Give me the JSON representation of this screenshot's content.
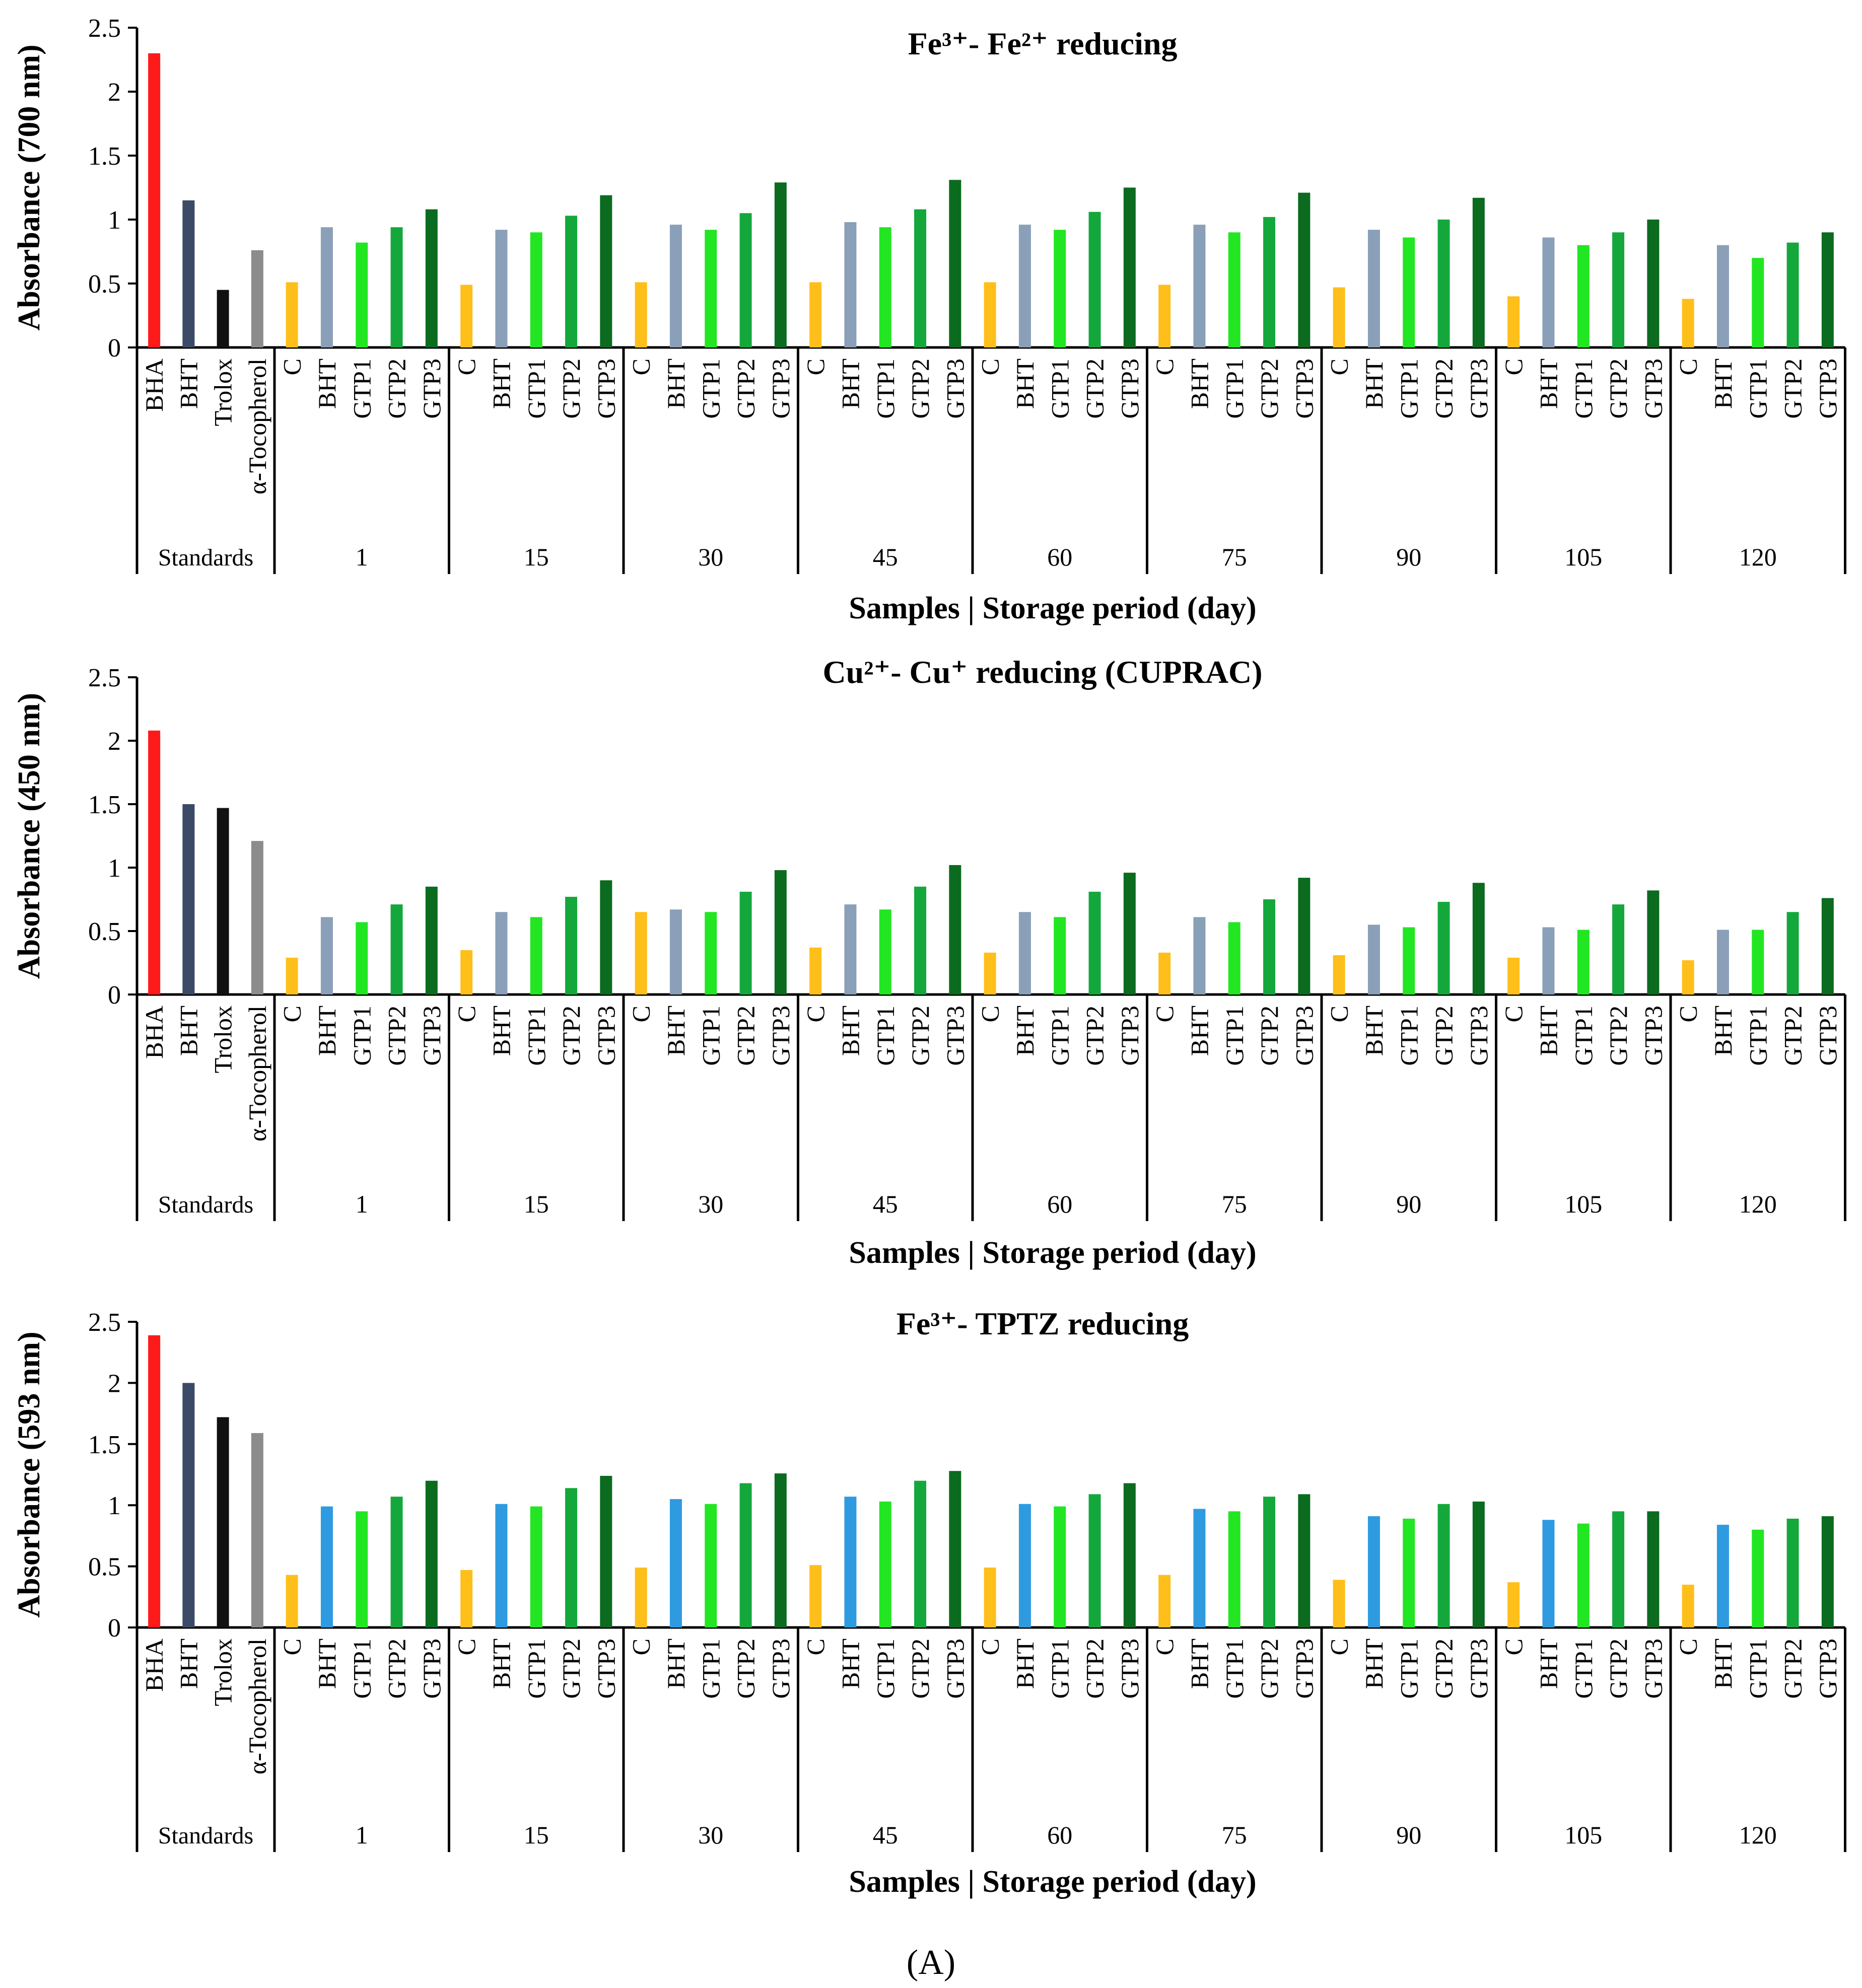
{
  "figure_label": "(A)",
  "chart_data": [
    {
      "type": "bar",
      "title": "Fe³⁺- Fe²⁺ reducing",
      "ylabel": "Absorbance (700 nm)",
      "xlabel": "Samples | Storage period (day)",
      "ylim": [
        0,
        2.5
      ],
      "yticks": [
        "0",
        "0.5",
        "1",
        "1.5",
        "2",
        "2.5"
      ],
      "grid": false,
      "standards": {
        "group_label": "Standards",
        "labels": [
          "BHA",
          "BHT",
          "Trolox",
          "α-Tocopherol"
        ],
        "values": [
          2.3,
          1.15,
          0.45,
          0.76
        ]
      },
      "sample_labels": [
        "C",
        "BHT",
        "GTP1",
        "GTP2",
        "GTP3"
      ],
      "periods": [
        {
          "day": "1",
          "values": [
            0.51,
            0.94,
            0.82,
            0.94,
            1.08
          ]
        },
        {
          "day": "15",
          "values": [
            0.49,
            0.92,
            0.9,
            1.03,
            1.19
          ]
        },
        {
          "day": "30",
          "values": [
            0.51,
            0.96,
            0.92,
            1.05,
            1.29
          ]
        },
        {
          "day": "45",
          "values": [
            0.51,
            0.98,
            0.94,
            1.08,
            1.31
          ]
        },
        {
          "day": "60",
          "values": [
            0.51,
            0.96,
            0.92,
            1.06,
            1.25
          ]
        },
        {
          "day": "75",
          "values": [
            0.49,
            0.96,
            0.9,
            1.02,
            1.21
          ]
        },
        {
          "day": "90",
          "values": [
            0.47,
            0.92,
            0.86,
            1.0,
            1.17
          ]
        },
        {
          "day": "105",
          "values": [
            0.4,
            0.86,
            0.8,
            0.9,
            1.0
          ]
        },
        {
          "day": "120",
          "values": [
            0.38,
            0.8,
            0.7,
            0.82,
            0.9
          ]
        }
      ],
      "colors": {
        "standards": [
          "#ff1a1a",
          "#3b4a66",
          "#111111",
          "#8c8c8c"
        ],
        "samples": [
          "#ffbf1a",
          "#8aa0b8",
          "#22e622",
          "#14a83c",
          "#0b6b1f"
        ]
      }
    },
    {
      "type": "bar",
      "title": "Cu²⁺- Cu⁺ reducing (CUPRAC)",
      "ylabel": "Absorbance (450 nm)",
      "xlabel": "Samples | Storage period (day)",
      "ylim": [
        0,
        2.5
      ],
      "yticks": [
        "0",
        "0.5",
        "1",
        "1.5",
        "2",
        "2.5"
      ],
      "grid": false,
      "standards": {
        "group_label": "Standards",
        "labels": [
          "BHA",
          "BHT",
          "Trolox",
          "α-Tocopherol"
        ],
        "values": [
          2.08,
          1.5,
          1.47,
          1.21
        ]
      },
      "sample_labels": [
        "C",
        "BHT",
        "GTP1",
        "GTP2",
        "GTP3"
      ],
      "periods": [
        {
          "day": "1",
          "values": [
            0.29,
            0.61,
            0.57,
            0.71,
            0.85
          ]
        },
        {
          "day": "15",
          "values": [
            0.35,
            0.65,
            0.61,
            0.77,
            0.9
          ]
        },
        {
          "day": "30",
          "values": [
            0.65,
            0.67,
            0.65,
            0.81,
            0.98
          ]
        },
        {
          "day": "45",
          "values": [
            0.37,
            0.71,
            0.67,
            0.85,
            1.02
          ]
        },
        {
          "day": "60",
          "values": [
            0.33,
            0.65,
            0.61,
            0.81,
            0.96
          ]
        },
        {
          "day": "75",
          "values": [
            0.33,
            0.61,
            0.57,
            0.75,
            0.92
          ]
        },
        {
          "day": "90",
          "values": [
            0.31,
            0.55,
            0.53,
            0.73,
            0.88
          ]
        },
        {
          "day": "105",
          "values": [
            0.29,
            0.53,
            0.51,
            0.71,
            0.82
          ]
        },
        {
          "day": "120",
          "values": [
            0.27,
            0.51,
            0.51,
            0.65,
            0.76
          ]
        }
      ],
      "colors": {
        "standards": [
          "#ff1a1a",
          "#3b4a66",
          "#111111",
          "#8c8c8c"
        ],
        "samples": [
          "#ffbf1a",
          "#8aa0b8",
          "#22e622",
          "#14a83c",
          "#0b6b1f"
        ]
      }
    },
    {
      "type": "bar",
      "title": "Fe³⁺- TPTZ reducing",
      "ylabel": "Absorbance (593 nm)",
      "xlabel": "Samples | Storage period (day)",
      "ylim": [
        0,
        2.5
      ],
      "yticks": [
        "0",
        "0.5",
        "1",
        "1.5",
        "2",
        "2.5"
      ],
      "grid": false,
      "standards": {
        "group_label": "Standards",
        "labels": [
          "BHA",
          "BHT",
          "Trolox",
          "α-Tocopherol"
        ],
        "values": [
          2.39,
          2.0,
          1.72,
          1.59
        ]
      },
      "sample_labels": [
        "C",
        "BHT",
        "GTP1",
        "GTP2",
        "GTP3"
      ],
      "periods": [
        {
          "day": "1",
          "values": [
            0.43,
            0.99,
            0.95,
            1.07,
            1.2
          ]
        },
        {
          "day": "15",
          "values": [
            0.47,
            1.01,
            0.99,
            1.14,
            1.24
          ]
        },
        {
          "day": "30",
          "values": [
            0.49,
            1.05,
            1.01,
            1.18,
            1.26
          ]
        },
        {
          "day": "45",
          "values": [
            0.51,
            1.07,
            1.03,
            1.2,
            1.28
          ]
        },
        {
          "day": "60",
          "values": [
            0.49,
            1.01,
            0.99,
            1.09,
            1.18
          ]
        },
        {
          "day": "75",
          "values": [
            0.43,
            0.97,
            0.95,
            1.07,
            1.09
          ]
        },
        {
          "day": "90",
          "values": [
            0.39,
            0.91,
            0.89,
            1.01,
            1.03
          ]
        },
        {
          "day": "105",
          "values": [
            0.37,
            0.88,
            0.85,
            0.95,
            0.95
          ]
        },
        {
          "day": "120",
          "values": [
            0.35,
            0.84,
            0.8,
            0.89,
            0.91
          ]
        }
      ],
      "colors": {
        "standards": [
          "#ff1a1a",
          "#3b4a66",
          "#111111",
          "#8c8c8c"
        ],
        "samples": [
          "#ffbf1a",
          "#2e9be0",
          "#22e622",
          "#14a83c",
          "#0b6b1f"
        ]
      }
    }
  ]
}
